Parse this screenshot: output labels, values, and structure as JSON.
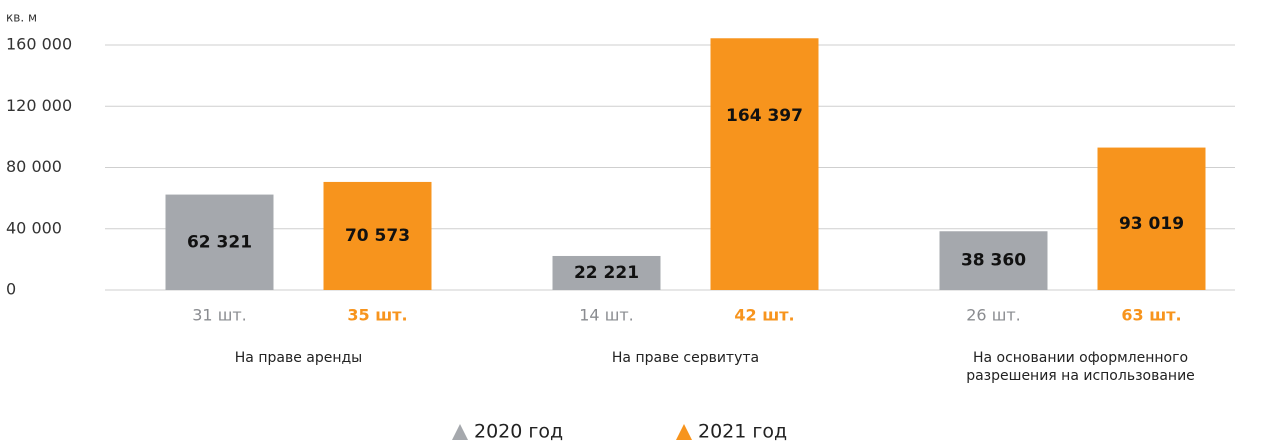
{
  "chart_data": {
    "type": "bar",
    "y_axis_label": "кв. м",
    "categories": [
      "На праве аренды",
      "На праве сервитута",
      "На основании оформленного разрешения на использование"
    ],
    "series": [
      {
        "name": "2020 год",
        "color": "#a5a8ad",
        "values": [
          62321,
          22221,
          38360
        ],
        "value_labels": [
          "62 321",
          "22 221",
          "38 360"
        ],
        "count_labels": [
          "31 шт.",
          "14 шт.",
          "26 шт."
        ],
        "count_color": "#8a8c90"
      },
      {
        "name": "2021 год",
        "color": "#f7941d",
        "values": [
          70573,
          164397,
          93019
        ],
        "value_labels": [
          "70 573",
          "164 397",
          "93 019"
        ],
        "count_labels": [
          "35 шт.",
          "42 шт.",
          "63 шт."
        ],
        "count_color": "#f7941d"
      }
    ],
    "ylim": [
      0,
      160000
    ],
    "yticks": [
      0,
      {
        "value": 40000,
        "label": "40 000"
      },
      {
        "value": 80000,
        "label": "80 000"
      },
      {
        "value": 120000,
        "label": "120 000"
      },
      {
        "value": 160000,
        "label": "160 000"
      }
    ],
    "grid": true,
    "legend": "bottom"
  }
}
